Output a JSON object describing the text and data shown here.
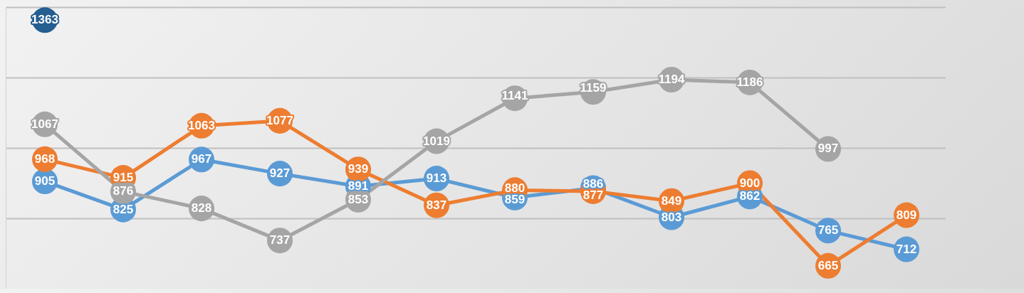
{
  "chart_data": {
    "type": "line",
    "categories": [
      null,
      null,
      null,
      null,
      null,
      null,
      null,
      null,
      null,
      null,
      null,
      null
    ],
    "series": [
      {
        "color": "#5b9bd5",
        "values": [
          905,
          825,
          967,
          927,
          891,
          913,
          859,
          886,
          803,
          862,
          765,
          712
        ]
      },
      {
        "color": "#ed7d31",
        "values": [
          968,
          915,
          1063,
          1077,
          939,
          837,
          880,
          877,
          849,
          900,
          665,
          809
        ]
      },
      {
        "color": "#a5a5a5",
        "values": [
          1067,
          876,
          828,
          737,
          853,
          1019,
          1141,
          1159,
          1194,
          1186,
          997,
          null
        ]
      },
      {
        "color": "#255e91",
        "values": [
          1363,
          null,
          null,
          null,
          null,
          null,
          null,
          null,
          null,
          null,
          null,
          null
        ]
      }
    ],
    "ylim": [
      600,
      1400
    ],
    "yticks": [
      {
        "value": 800,
        "label": null
      },
      {
        "value": 1000,
        "label": null
      },
      {
        "value": 1200,
        "label": null
      },
      {
        "value": 1400,
        "label": null
      }
    ],
    "grid": "y",
    "tick_labels": false,
    "data_labels": true,
    "marker": "circle",
    "line_style": "solid",
    "legend": false
  }
}
